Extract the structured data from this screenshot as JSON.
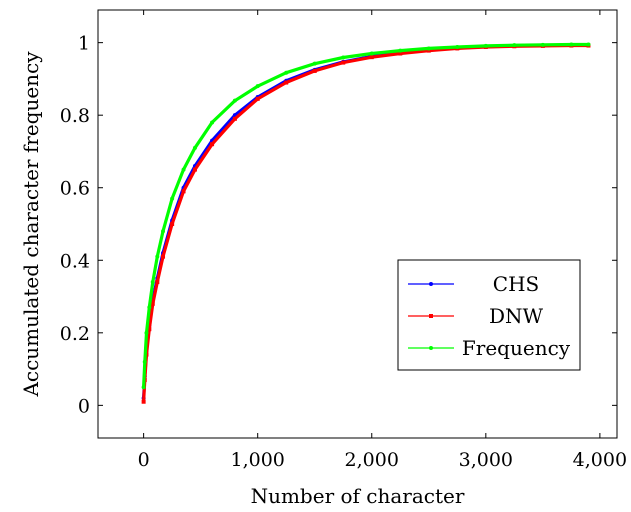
{
  "chart_data": {
    "type": "line",
    "title": "",
    "xlabel": "Number of character",
    "ylabel": "Accumulated character frequency",
    "xlim": [
      -400,
      4150
    ],
    "ylim": [
      -0.09,
      1.09
    ],
    "x_ticks": [
      0,
      1000,
      2000,
      3000,
      4000
    ],
    "x_tick_labels": [
      "0",
      "1,000",
      "2,000",
      "3,000",
      "4,000"
    ],
    "y_ticks": [
      0,
      0.2,
      0.4,
      0.6,
      0.8,
      1
    ],
    "y_tick_labels": [
      "0",
      "0.2",
      "0.4",
      "0.6",
      "0.8",
      "1"
    ],
    "grid": false,
    "legend_position": "bottom-right",
    "series": [
      {
        "name": "CHS",
        "color": "#0000ff",
        "marker": "circle",
        "x": [
          0,
          10,
          25,
          50,
          80,
          120,
          170,
          250,
          350,
          450,
          600,
          800,
          1000,
          1250,
          1500,
          1750,
          2000,
          2250,
          2500,
          2750,
          3000,
          3250,
          3500,
          3750,
          3900
        ],
        "y": [
          0.02,
          0.08,
          0.15,
          0.22,
          0.29,
          0.35,
          0.42,
          0.51,
          0.6,
          0.66,
          0.73,
          0.8,
          0.85,
          0.895,
          0.925,
          0.947,
          0.962,
          0.972,
          0.98,
          0.985,
          0.989,
          0.991,
          0.992,
          0.993,
          0.993
        ]
      },
      {
        "name": "DNW",
        "color": "#ff0000",
        "marker": "square",
        "x": [
          0,
          10,
          25,
          50,
          80,
          120,
          170,
          250,
          350,
          450,
          600,
          800,
          1000,
          1250,
          1500,
          1750,
          2000,
          2250,
          2500,
          2750,
          3000,
          3250,
          3500,
          3750,
          3900
        ],
        "y": [
          0.01,
          0.07,
          0.14,
          0.21,
          0.28,
          0.34,
          0.41,
          0.5,
          0.59,
          0.65,
          0.72,
          0.79,
          0.845,
          0.89,
          0.922,
          0.945,
          0.96,
          0.97,
          0.978,
          0.984,
          0.988,
          0.99,
          0.991,
          0.992,
          0.992
        ]
      },
      {
        "name": "Frequency",
        "color": "#00ff00",
        "marker": "circle",
        "x": [
          0,
          10,
          25,
          50,
          80,
          120,
          170,
          250,
          350,
          450,
          600,
          800,
          1000,
          1250,
          1500,
          1750,
          2000,
          2250,
          2500,
          2750,
          3000,
          3250,
          3500,
          3750,
          3900
        ],
        "y": [
          0.05,
          0.12,
          0.2,
          0.27,
          0.34,
          0.41,
          0.48,
          0.57,
          0.65,
          0.71,
          0.78,
          0.84,
          0.88,
          0.917,
          0.942,
          0.959,
          0.97,
          0.978,
          0.984,
          0.988,
          0.991,
          0.993,
          0.994,
          0.995,
          0.995
        ]
      }
    ]
  }
}
